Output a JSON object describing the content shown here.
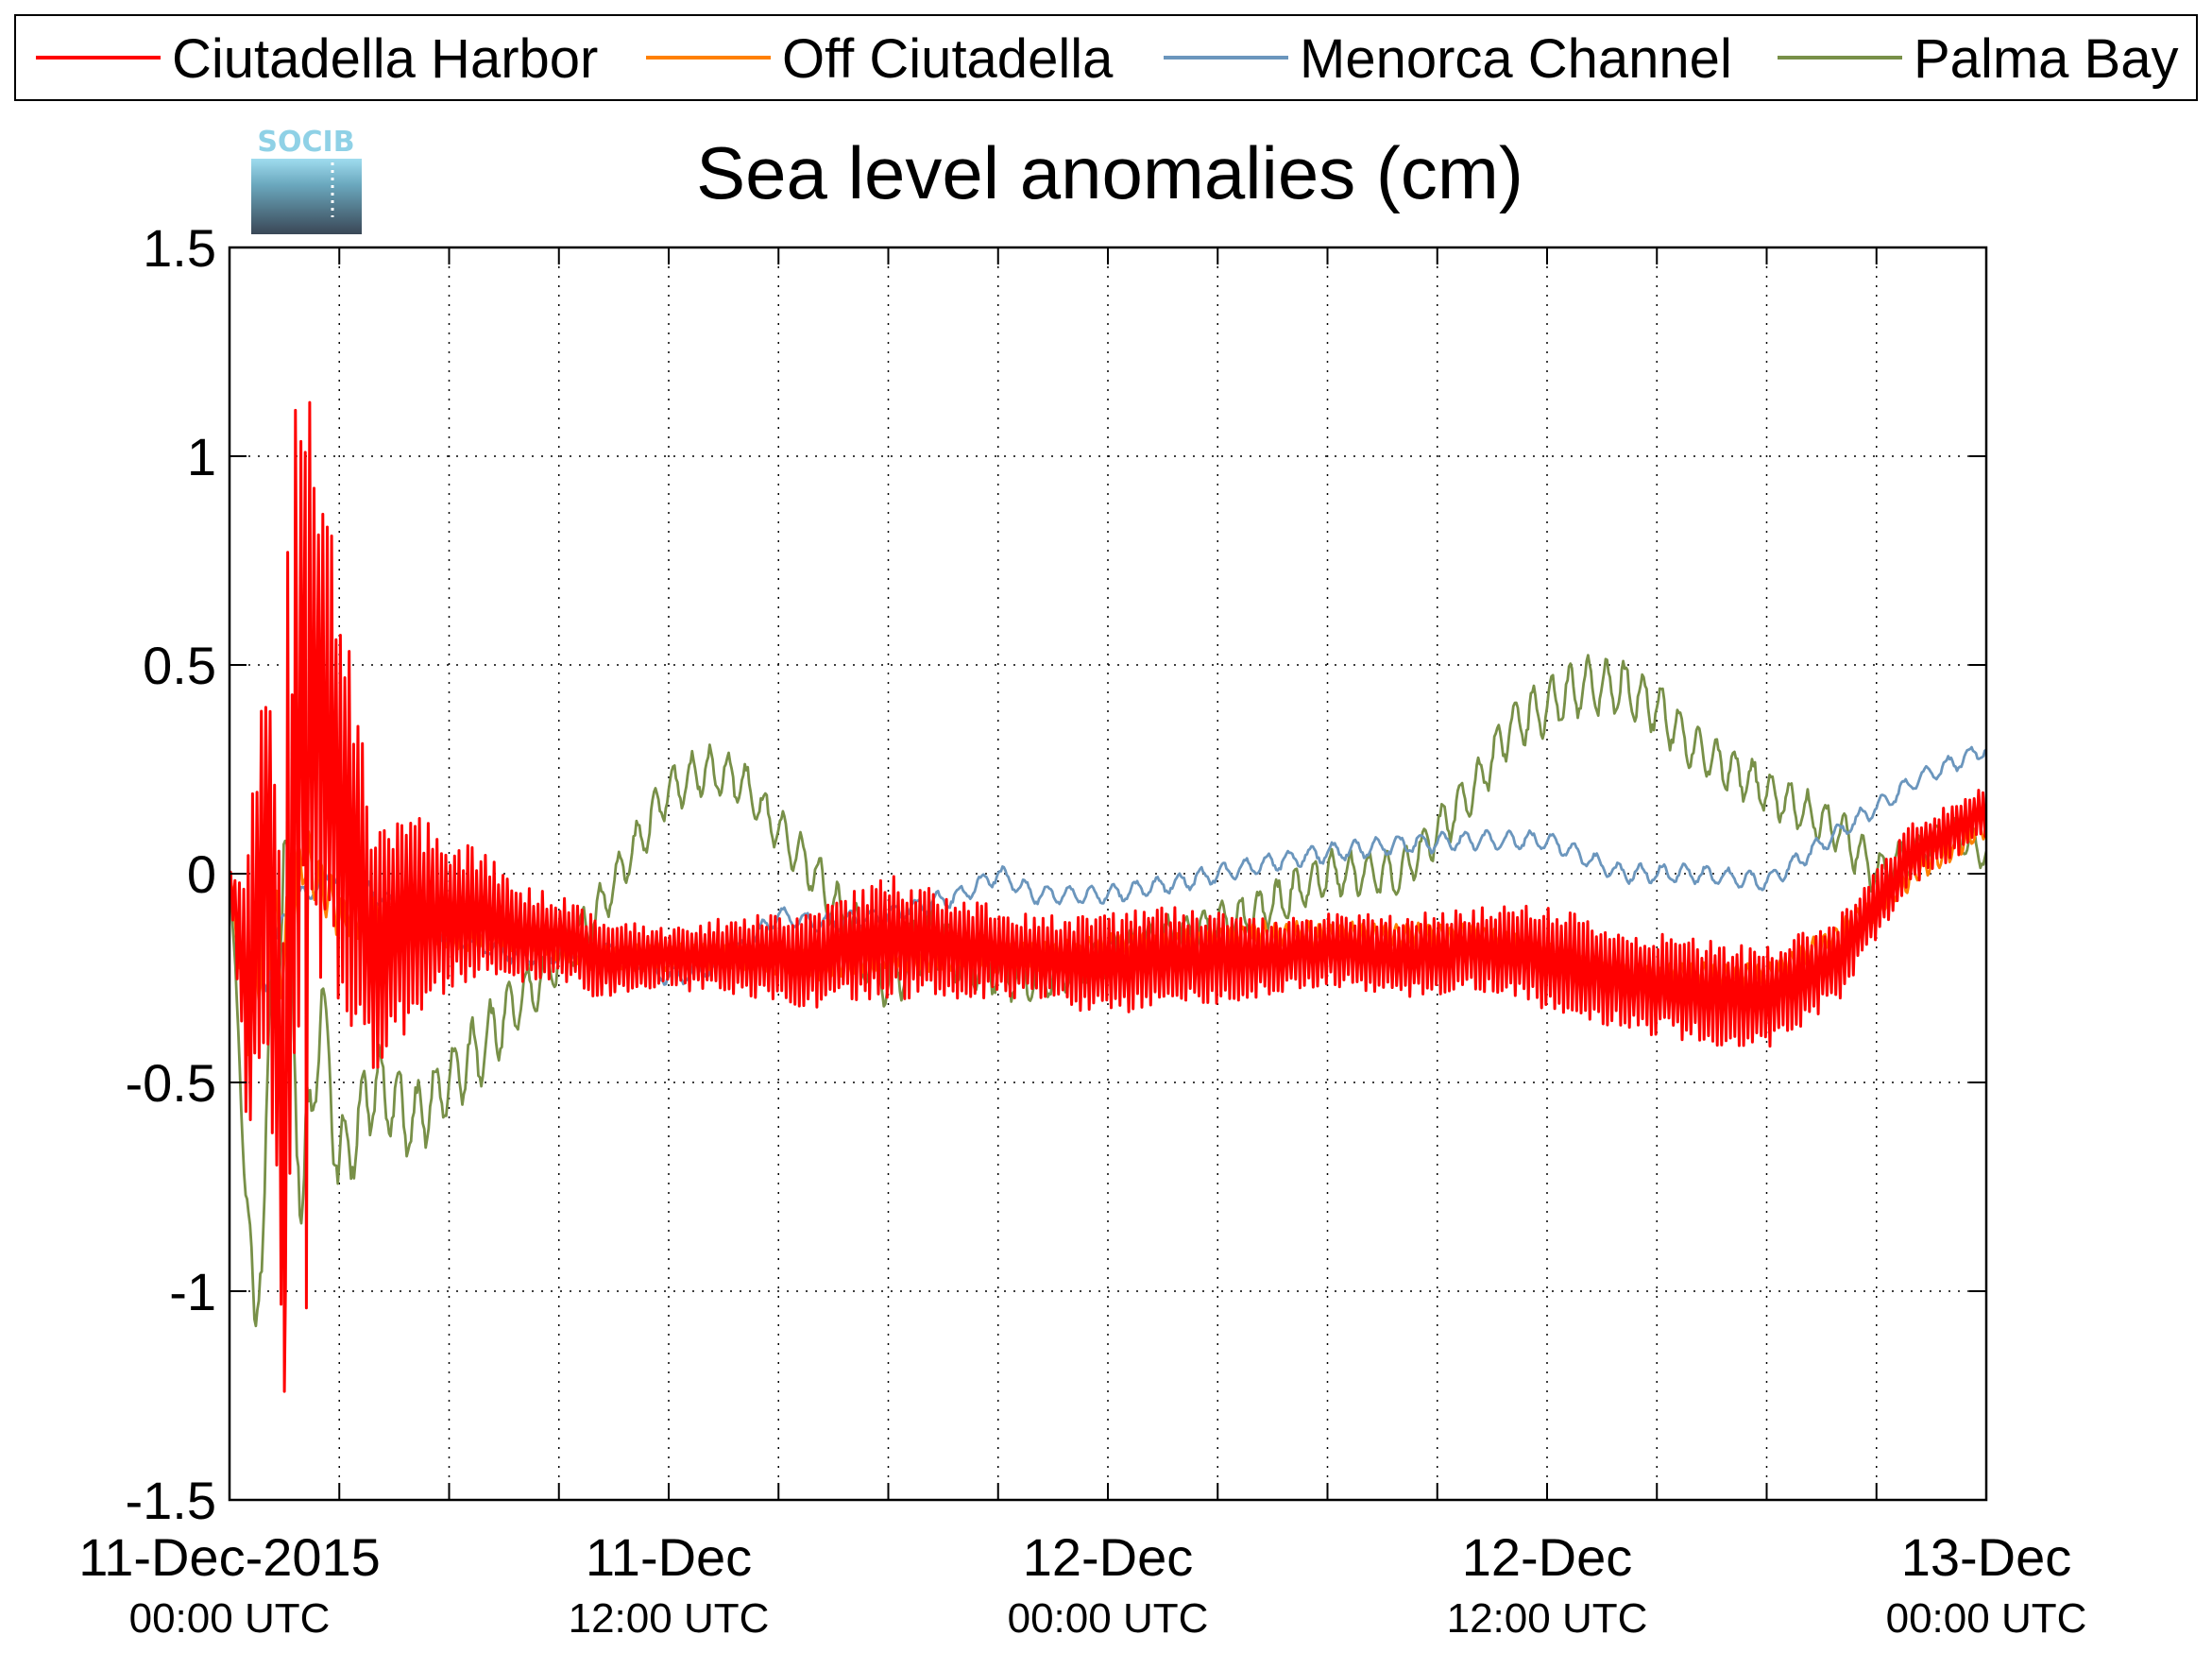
{
  "chart_data": {
    "type": "line",
    "title": "Sea level anomalies (cm)",
    "xlabel": "",
    "ylabel": "",
    "xlim": [
      0,
      48
    ],
    "ylim": [
      -1.5,
      1.5
    ],
    "grid": true,
    "legend_position": "top",
    "logo": {
      "text": "SOCIB"
    },
    "yticks": [
      {
        "value": -1.5,
        "label": "-1.5"
      },
      {
        "value": -1,
        "label": "-1"
      },
      {
        "value": -0.5,
        "label": "-0.5"
      },
      {
        "value": 0,
        "label": "0"
      },
      {
        "value": 0.5,
        "label": "0.5"
      },
      {
        "value": 1,
        "label": "1"
      },
      {
        "value": 1.5,
        "label": "1.5"
      }
    ],
    "xticks_minor": [
      3,
      6,
      9,
      12,
      15,
      18,
      21,
      24,
      27,
      30,
      33,
      36,
      39,
      42,
      45
    ],
    "xticks": [
      {
        "value": 0,
        "date": "11-Dec-2015",
        "time": "00:00 UTC"
      },
      {
        "value": 12,
        "date": "11-Dec",
        "time": "12:00 UTC"
      },
      {
        "value": 24,
        "date": "12-Dec",
        "time": "00:00 UTC"
      },
      {
        "value": 36,
        "date": "12-Dec",
        "time": "12:00 UTC"
      },
      {
        "value": 48,
        "date": "13-Dec",
        "time": "00:00 UTC"
      }
    ],
    "series": [
      {
        "name": "Ciutadella Harbor",
        "color": "#ff0000",
        "x": [
          0,
          0.5,
          1,
          1.5,
          2,
          3,
          4,
          5,
          6,
          7,
          8,
          9,
          10,
          12,
          14,
          16,
          18,
          20,
          22,
          24,
          26,
          28,
          30,
          32,
          34,
          36,
          38,
          40,
          42,
          44,
          46,
          48
        ],
        "y": [
          0,
          -0.3,
          0.1,
          -0.6,
          0.5,
          0.2,
          -0.2,
          -0.1,
          -0.1,
          -0.1,
          -0.15,
          -0.15,
          -0.2,
          -0.2,
          -0.2,
          -0.2,
          -0.15,
          -0.18,
          -0.2,
          -0.22,
          -0.2,
          -0.2,
          -0.18,
          -0.2,
          -0.18,
          -0.2,
          -0.25,
          -0.28,
          -0.3,
          -0.2,
          0.05,
          0.15
        ],
        "amp": [
          0,
          0.3,
          0.4,
          0.5,
          0.6,
          0.4,
          0.25,
          0.2,
          0.15,
          0.12,
          0.1,
          0.08,
          0.08,
          0.06,
          0.08,
          0.1,
          0.12,
          0.1,
          0.08,
          0.1,
          0.1,
          0.08,
          0.07,
          0.08,
          0.08,
          0.1,
          0.1,
          0.1,
          0.1,
          0.08,
          0.06,
          0.05
        ],
        "period": 0.12,
        "peaks": [
          {
            "x": 1.8,
            "y": 1.11
          },
          {
            "x": 1.5,
            "y": -1.24
          },
          {
            "x": 1.6,
            "y": 0.77
          },
          {
            "x": 2.1,
            "y": -1.04
          }
        ]
      },
      {
        "name": "Off Ciutadella",
        "color": "#ff8000",
        "x": [
          0,
          0.5,
          1,
          1.5,
          2,
          3,
          4,
          6,
          8,
          10,
          12,
          14,
          16,
          18,
          20,
          22,
          24,
          26,
          28,
          30,
          32,
          34,
          36,
          38,
          40,
          42,
          44,
          46,
          48
        ],
        "y": [
          0,
          -0.35,
          -0.1,
          -0.2,
          0.05,
          -0.1,
          -0.1,
          -0.15,
          -0.15,
          -0.2,
          -0.2,
          -0.2,
          -0.22,
          -0.2,
          -0.2,
          -0.2,
          -0.18,
          -0.17,
          -0.15,
          -0.15,
          -0.15,
          -0.15,
          -0.2,
          -0.25,
          -0.25,
          -0.25,
          -0.15,
          0.0,
          0.12
        ],
        "amp": [
          0,
          0.1,
          0.1,
          0.1,
          0.08,
          0.05,
          0.04,
          0.03,
          0.03,
          0.03,
          0.03,
          0.03,
          0.03,
          0.03,
          0.03,
          0.03,
          0.03,
          0.03,
          0.03,
          0.03,
          0.03,
          0.03,
          0.03,
          0.03,
          0.03,
          0.03,
          0.03,
          0.03,
          0.03
        ],
        "period": 0.3,
        "peaks": []
      },
      {
        "name": "Menorca Channel",
        "color": "#6b96bd",
        "x": [
          0,
          0.5,
          1,
          1.5,
          2,
          3,
          4,
          6,
          8,
          10,
          11,
          12,
          13,
          14,
          15,
          16,
          18,
          20,
          21,
          22,
          24,
          26,
          28,
          30,
          32,
          34,
          36,
          38,
          40,
          42,
          44,
          46,
          48
        ],
        "y": [
          0,
          -0.3,
          -0.25,
          -0.1,
          -0.05,
          0.0,
          -0.05,
          -0.15,
          -0.2,
          -0.18,
          -0.2,
          -0.25,
          -0.23,
          -0.18,
          -0.1,
          -0.12,
          -0.1,
          -0.05,
          0.0,
          -0.05,
          -0.05,
          -0.02,
          0.02,
          0.05,
          0.07,
          0.08,
          0.08,
          0.0,
          0.0,
          -0.02,
          0.1,
          0.22,
          0.3
        ],
        "amp": [
          0,
          0.03,
          0.03,
          0.02,
          0.02,
          0.02,
          0.02,
          0.02,
          0.02,
          0.02,
          0.02,
          0.02,
          0.02,
          0.02,
          0.02,
          0.02,
          0.02,
          0.02,
          0.02,
          0.02,
          0.02,
          0.02,
          0.02,
          0.02,
          0.02,
          0.02,
          0.02,
          0.02,
          0.02,
          0.02,
          0.02,
          0.02,
          0.02
        ],
        "period": 0.6,
        "peaks": []
      },
      {
        "name": "Palma Bay",
        "color": "#789048",
        "x": [
          0,
          0.5,
          0.7,
          1,
          1.5,
          2,
          2.5,
          3,
          4,
          5,
          6,
          7,
          8,
          9,
          10,
          11,
          12,
          13,
          14,
          15,
          16,
          17,
          18,
          19,
          20,
          22,
          24,
          26,
          28,
          30,
          32,
          33,
          34,
          35,
          36,
          37,
          38,
          39,
          40,
          41,
          42,
          43,
          44,
          45,
          46,
          47,
          48
        ],
        "y": [
          0,
          -0.8,
          -1.14,
          -0.6,
          0.1,
          -0.8,
          -0.3,
          -0.7,
          -0.5,
          -0.6,
          -0.5,
          -0.4,
          -0.3,
          -0.2,
          -0.1,
          0.05,
          0.2,
          0.25,
          0.22,
          0.1,
          0.0,
          -0.15,
          -0.25,
          -0.15,
          -0.2,
          -0.25,
          -0.2,
          -0.15,
          -0.1,
          0.0,
          0.0,
          0.1,
          0.2,
          0.35,
          0.4,
          0.45,
          0.45,
          0.4,
          0.3,
          0.25,
          0.2,
          0.15,
          0.1,
          0.0,
          0.05,
          0.1,
          0.05
        ],
        "amp": [
          0,
          0.1,
          0.05,
          0.15,
          0.15,
          0.15,
          0.12,
          0.1,
          0.1,
          0.08,
          0.08,
          0.08,
          0.06,
          0.06,
          0.05,
          0.05,
          0.05,
          0.05,
          0.05,
          0.05,
          0.05,
          0.08,
          0.08,
          0.08,
          0.06,
          0.06,
          0.05,
          0.05,
          0.05,
          0.05,
          0.05,
          0.05,
          0.05,
          0.06,
          0.06,
          0.06,
          0.06,
          0.06,
          0.05,
          0.05,
          0.05,
          0.05,
          0.05,
          0.05,
          0.04,
          0.04,
          0.04
        ],
        "period": 0.5,
        "peaks": []
      }
    ]
  }
}
